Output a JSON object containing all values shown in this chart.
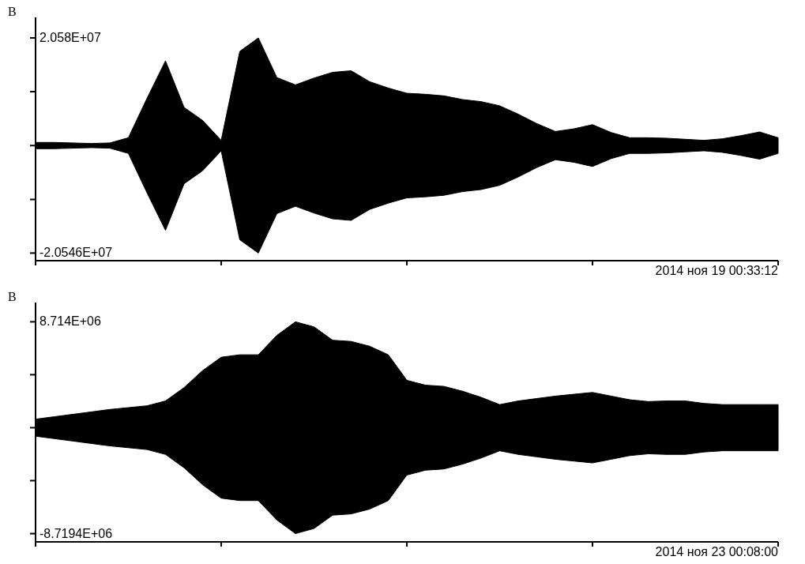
{
  "chart_data": [
    {
      "type": "area",
      "ylabel": "В",
      "annotations": [
        "2014 ноя 19 00:33:12"
      ],
      "ylim": [
        -22000000.0,
        24500000.0
      ],
      "yticks": [
        {
          "value": -20546000.0,
          "label": "-2.0546E+07"
        },
        {
          "value": -10300000.0,
          "label": null
        },
        {
          "value": 0,
          "label": null
        },
        {
          "value": 10300000.0,
          "label": null
        },
        {
          "value": 20580000.0,
          "label": "2.058E+07"
        }
      ],
      "categories": [
        null,
        null,
        null,
        null,
        null,
        null,
        null,
        null,
        null,
        null,
        null,
        null,
        null,
        null,
        null,
        null,
        null,
        null,
        null,
        null,
        null,
        null,
        null,
        null,
        null,
        null,
        null,
        null,
        null,
        null,
        null,
        null,
        null,
        null,
        null,
        null,
        null,
        null,
        null,
        null,
        null
      ],
      "series": [
        {
          "color": "#000000",
          "values": [
            600000.0,
            600000.0,
            500000.0,
            400000.0,
            500000.0,
            1500000.0,
            9000000.0,
            16200000.0,
            7300000.0,
            4800000.0,
            1000000.0,
            18000000.0,
            20580000.0,
            13000000.0,
            11600000.0,
            12900000.0,
            14000000.0,
            14300000.0,
            12200000.0,
            11000000.0,
            10000000.0,
            9800000.0,
            9500000.0,
            8800000.0,
            8400000.0,
            7600000.0,
            6000000.0,
            4200000.0,
            2700000.0,
            3200000.0,
            4000000.0,
            2500000.0,
            1500000.0,
            1500000.0,
            1400000.0,
            1200000.0,
            1000000.0,
            1300000.0,
            1900000.0,
            2600000.0,
            1500000.0
          ]
        },
        {
          "color": "#000000",
          "values": [
            -600000.0,
            -600000.0,
            -500000.0,
            -400000.0,
            -500000.0,
            -1500000.0,
            -9000000.0,
            -16200000.0,
            -7300000.0,
            -4800000.0,
            -1000000.0,
            -18000000.0,
            -20546000.0,
            -13000000.0,
            -11600000.0,
            -12900000.0,
            -14000000.0,
            -14300000.0,
            -12200000.0,
            -11000000.0,
            -10000000.0,
            -9800000.0,
            -9500000.0,
            -8800000.0,
            -8400000.0,
            -7600000.0,
            -6000000.0,
            -4200000.0,
            -2700000.0,
            -3200000.0,
            -4000000.0,
            -2500000.0,
            -1500000.0,
            -1500000.0,
            -1400000.0,
            -1200000.0,
            -1000000.0,
            -1300000.0,
            -1900000.0,
            -2600000.0,
            -1500000.0
          ]
        }
      ]
    },
    {
      "type": "area",
      "ylabel": "В",
      "annotations": [
        "2014 ноя 23 00:08:00"
      ],
      "ylim": [
        -9400000.0,
        10300000.0
      ],
      "yticks": [
        {
          "value": -8719400.0,
          "label": "-8.7194E+06"
        },
        {
          "value": -4360000.0,
          "label": null
        },
        {
          "value": 0,
          "label": null
        },
        {
          "value": 4360000.0,
          "label": null
        },
        {
          "value": 8714000.0,
          "label": "8.714E+06"
        }
      ],
      "categories": [
        null,
        null,
        null,
        null,
        null,
        null,
        null,
        null,
        null,
        null,
        null,
        null,
        null,
        null,
        null,
        null,
        null,
        null,
        null,
        null,
        null,
        null,
        null,
        null,
        null,
        null,
        null,
        null,
        null,
        null,
        null,
        null,
        null,
        null,
        null,
        null,
        null,
        null,
        null,
        null,
        null
      ],
      "series": [
        {
          "color": "#000000",
          "values": [
            700000.0,
            900000.0,
            1100000.0,
            1300000.0,
            1500000.0,
            1650000.0,
            1800000.0,
            2200000.0,
            3300000.0,
            4700000.0,
            5800000.0,
            6000000.0,
            6000000.0,
            7600000.0,
            8714000.0,
            8300000.0,
            7200000.0,
            7100000.0,
            6700000.0,
            6000000.0,
            3900000.0,
            3500000.0,
            3400000.0,
            3000000.0,
            2500000.0,
            1900000.0,
            2200000.0,
            2400000.0,
            2600000.0,
            2750000.0,
            2900000.0,
            2600000.0,
            2300000.0,
            2150000.0,
            2200000.0,
            2200000.0,
            2000000.0,
            1900000.0,
            1900000.0,
            1900000.0,
            1900000.0
          ]
        },
        {
          "color": "#000000",
          "values": [
            -700000.0,
            -900000.0,
            -1100000.0,
            -1300000.0,
            -1500000.0,
            -1650000.0,
            -1800000.0,
            -2200000.0,
            -3300000.0,
            -4700000.0,
            -5800000.0,
            -6000000.0,
            -6000000.0,
            -7600000.0,
            -8719400.0,
            -8300000.0,
            -7200000.0,
            -7100000.0,
            -6700000.0,
            -6000000.0,
            -3900000.0,
            -3500000.0,
            -3400000.0,
            -3000000.0,
            -2500000.0,
            -1900000.0,
            -2200000.0,
            -2400000.0,
            -2600000.0,
            -2750000.0,
            -2900000.0,
            -2600000.0,
            -2300000.0,
            -2150000.0,
            -2200000.0,
            -2200000.0,
            -2000000.0,
            -1900000.0,
            -1900000.0,
            -1900000.0,
            -1900000.0
          ]
        }
      ]
    }
  ]
}
